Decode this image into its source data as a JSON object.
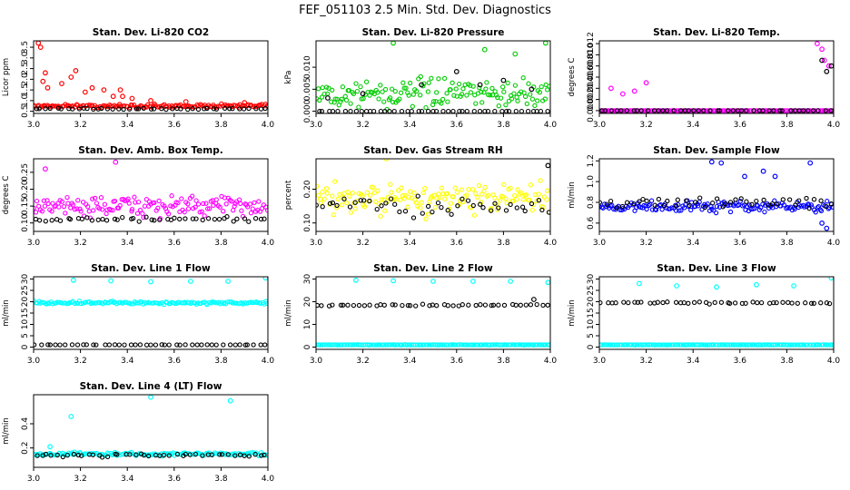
{
  "title": "FEF_051103  2.5 Min. Std. Dev. Diagnostics",
  "colors": {
    "red": "#ff0000",
    "green": "#00cc00",
    "magenta": "#ff00ff",
    "yellow": "#ffff00",
    "blue": "#0000ff",
    "cyan": "#00ffff",
    "black": "#000000"
  },
  "chart_data": [
    {
      "type": "scatter",
      "title": "Stan. Dev. Li-820 CO2",
      "ylabel": "Licor ppm",
      "xlim": [
        3.0,
        4.0
      ],
      "xticks": [
        "3.0",
        "3.2",
        "3.4",
        "3.6",
        "3.8",
        "4.0"
      ],
      "ylim": [
        0.4,
        3.8
      ],
      "yticks": [
        "0.5",
        "1.0",
        "1.5",
        "2.0",
        "2.5",
        "3.0",
        "3.5"
      ],
      "series": [
        {
          "name": "primary",
          "color": "red",
          "base": 0.75,
          "spread": 0.12,
          "outliers": [
            [
              3.02,
              3.7
            ],
            [
              3.03,
              3.5
            ],
            [
              3.05,
              2.3
            ],
            [
              3.04,
              1.9
            ],
            [
              3.06,
              1.6
            ],
            [
              3.16,
              2.1
            ],
            [
              3.18,
              2.4
            ],
            [
              3.12,
              1.8
            ],
            [
              3.22,
              1.4
            ],
            [
              3.25,
              1.6
            ],
            [
              3.3,
              1.5
            ],
            [
              3.34,
              1.2
            ],
            [
              3.37,
              1.5
            ],
            [
              3.38,
              1.2
            ],
            [
              3.42,
              1.1
            ],
            [
              3.5,
              1.0
            ],
            [
              3.65,
              0.95
            ],
            [
              3.9,
              0.9
            ]
          ]
        },
        {
          "name": "secondary",
          "color": "black",
          "base": 0.62,
          "spread": 0.05,
          "outliers": []
        }
      ]
    },
    {
      "type": "scatter",
      "title": "Stan. Dev. Li-820 Pressure",
      "ylabel": "kPa",
      "xlim": [
        3.0,
        4.0
      ],
      "xticks": [
        "3.0",
        "3.2",
        "3.4",
        "3.6",
        "3.8",
        "4.0"
      ],
      "ylim": [
        -0.0005,
        0.016
      ],
      "yticks": [
        "0.000",
        "0.005",
        "0.010"
      ],
      "series": [
        {
          "name": "primary",
          "color": "green",
          "base": 0.004,
          "spread": 0.0045,
          "outliers": [
            [
              3.33,
              0.0155
            ],
            [
              3.98,
              0.0155
            ],
            [
              3.72,
              0.014
            ],
            [
              3.85,
              0.013
            ]
          ]
        },
        {
          "name": "secondary",
          "color": "black",
          "base": 0.0,
          "spread": 0.0,
          "outliers": [
            [
              3.05,
              0.003
            ],
            [
              3.2,
              0.004
            ],
            [
              3.45,
              0.006
            ],
            [
              3.6,
              0.009
            ],
            [
              3.7,
              0.006
            ],
            [
              3.8,
              0.007
            ],
            [
              3.92,
              0.005
            ]
          ]
        }
      ]
    },
    {
      "type": "scatter",
      "title": "Stan. Dev. Li-820 Temp.",
      "ylabel": "degrees C",
      "xlim": [
        3.0,
        4.0
      ],
      "xticks": [
        "3.0",
        "3.2",
        "3.4",
        "3.6",
        "3.8",
        "4.0"
      ],
      "ylim": [
        -0.0005,
        0.0125
      ],
      "yticks": [
        "0.000",
        "0.002",
        "0.004",
        "0.006",
        "0.008",
        "0.010",
        "0.012"
      ],
      "series": [
        {
          "name": "primary",
          "color": "magenta",
          "base": 0.0,
          "spread": 0.0,
          "outliers": [
            [
              3.05,
              0.004
            ],
            [
              3.1,
              0.003
            ],
            [
              3.15,
              0.0035
            ],
            [
              3.2,
              0.005
            ],
            [
              3.93,
              0.012
            ],
            [
              3.95,
              0.011
            ],
            [
              3.96,
              0.009
            ],
            [
              3.98,
              0.008
            ]
          ]
        },
        {
          "name": "secondary",
          "color": "black",
          "base": 0.0,
          "spread": 0.0,
          "outliers": [
            [
              3.95,
              0.009
            ],
            [
              3.97,
              0.007
            ],
            [
              3.99,
              0.008
            ]
          ]
        }
      ]
    },
    {
      "type": "scatter",
      "title": "Stan. Dev. Amb. Box Temp.",
      "ylabel": "degrees C",
      "xlim": [
        3.0,
        4.0
      ],
      "xticks": [
        "3.0",
        "3.2",
        "3.4",
        "3.6",
        "3.8",
        "4.0"
      ],
      "ylim": [
        0.075,
        0.29
      ],
      "yticks": [
        "0.10",
        "0.15",
        "0.20",
        "0.25"
      ],
      "series": [
        {
          "name": "primary",
          "color": "magenta",
          "base": 0.15,
          "spread": 0.045,
          "outliers": [
            [
              3.35,
              0.28
            ],
            [
              3.05,
              0.26
            ]
          ]
        },
        {
          "name": "secondary",
          "color": "black",
          "base": 0.11,
          "spread": 0.01,
          "outliers": []
        }
      ]
    },
    {
      "type": "scatter",
      "title": "Stan. Dev. Gas Stream RH",
      "ylabel": "percent",
      "xlim": [
        3.0,
        4.0
      ],
      "xticks": [
        "3.0",
        "3.2",
        "3.4",
        "3.6",
        "3.8",
        "4.0"
      ],
      "ylim": [
        0.075,
        0.29
      ],
      "yticks": [
        "0.10",
        "0.20"
      ],
      "series": [
        {
          "name": "primary",
          "color": "yellow",
          "base": 0.17,
          "spread": 0.07,
          "outliers": [
            [
              3.3,
              0.29
            ]
          ]
        },
        {
          "name": "secondary",
          "color": "black",
          "base": 0.15,
          "spread": 0.04,
          "outliers": [
            [
              3.99,
              0.27
            ]
          ]
        }
      ]
    },
    {
      "type": "scatter",
      "title": "Stan. Dev. Sample Flow",
      "ylabel": "ml/min",
      "xlim": [
        3.0,
        4.0
      ],
      "xticks": [
        "3.0",
        "3.2",
        "3.4",
        "3.6",
        "3.8",
        "4.0"
      ],
      "ylim": [
        0.52,
        1.22
      ],
      "yticks": [
        "0.6",
        "0.8",
        "1.0",
        "1.2"
      ],
      "series": [
        {
          "name": "primary",
          "color": "blue",
          "base": 0.76,
          "spread": 0.08,
          "outliers": [
            [
              3.48,
              1.19
            ],
            [
              3.52,
              1.18
            ],
            [
              3.7,
              1.1
            ],
            [
              3.75,
              1.05
            ],
            [
              3.62,
              1.05
            ],
            [
              3.9,
              1.18
            ],
            [
              3.97,
              0.55
            ],
            [
              3.95,
              0.6
            ]
          ]
        },
        {
          "name": "secondary",
          "color": "black",
          "base": 0.8,
          "spread": 0.07,
          "outliers": []
        }
      ]
    },
    {
      "type": "scatter",
      "title": "Stan. Dev. Line 1 Flow",
      "ylabel": "ml/min",
      "xlim": [
        3.0,
        4.0
      ],
      "xticks": [
        "3.0",
        "3.2",
        "3.4",
        "3.6",
        "3.8",
        "4.0"
      ],
      "ylim": [
        -1,
        31
      ],
      "yticks": [
        "0",
        "5",
        "10",
        "15",
        "20",
        "25",
        "30"
      ],
      "series": [
        {
          "name": "primary",
          "color": "cyan",
          "base": 19.5,
          "spread": 0.9,
          "outliers": [
            [
              3.17,
              29.5
            ],
            [
              3.33,
              29.2
            ],
            [
              3.5,
              28.8
            ],
            [
              3.67,
              29.0
            ],
            [
              3.83,
              29.0
            ],
            [
              3.99,
              30.5
            ]
          ]
        },
        {
          "name": "secondary",
          "color": "black",
          "base": 1.0,
          "spread": 0.1,
          "outliers": []
        }
      ]
    },
    {
      "type": "scatter",
      "title": "Stan. Dev. Line 2 Flow",
      "ylabel": "ml/min",
      "xlim": [
        3.0,
        4.0
      ],
      "xticks": [
        "3.0",
        "3.2",
        "3.4",
        "3.6",
        "3.8",
        "4.0"
      ],
      "ylim": [
        -1,
        31
      ],
      "yticks": [
        "0",
        "10",
        "20",
        "30"
      ],
      "series": [
        {
          "name": "primary",
          "color": "cyan",
          "base": 1.0,
          "spread": 0.1,
          "outliers": [
            [
              3.17,
              29.5
            ],
            [
              3.33,
              29.2
            ],
            [
              3.5,
              29.0
            ],
            [
              3.67,
              29.0
            ],
            [
              3.83,
              29.0
            ],
            [
              3.99,
              28.5
            ]
          ]
        },
        {
          "name": "secondary",
          "color": "black",
          "base": 18.5,
          "spread": 0.5,
          "outliers": [
            [
              3.93,
              21.0
            ]
          ]
        }
      ]
    },
    {
      "type": "scatter",
      "title": "Stan. Dev. Line 3 Flow",
      "ylabel": "ml/min",
      "xlim": [
        3.0,
        4.0
      ],
      "xticks": [
        "3.0",
        "3.2",
        "3.4",
        "3.6",
        "3.8",
        "4.0"
      ],
      "ylim": [
        -1,
        31
      ],
      "yticks": [
        "0",
        "5",
        "10",
        "15",
        "20",
        "25",
        "30"
      ],
      "series": [
        {
          "name": "primary",
          "color": "cyan",
          "base": 1.0,
          "spread": 0.1,
          "outliers": [
            [
              3.17,
              28.0
            ],
            [
              3.33,
              27.0
            ],
            [
              3.5,
              26.5
            ],
            [
              3.67,
              27.5
            ],
            [
              3.83,
              27.0
            ],
            [
              3.99,
              30.5
            ]
          ]
        },
        {
          "name": "secondary",
          "color": "black",
          "base": 19.5,
          "spread": 0.6,
          "outliers": []
        }
      ]
    },
    {
      "type": "scatter",
      "title": "Stan. Dev. Line 4 (LT) Flow",
      "ylabel": "ml/min",
      "xlim": [
        3.0,
        4.0
      ],
      "xticks": [
        "3.0",
        "3.2",
        "3.4",
        "3.6",
        "3.8",
        "4.0"
      ],
      "ylim": [
        0.04,
        0.64
      ],
      "yticks": [
        "0.2",
        "0.4"
      ],
      "series": [
        {
          "name": "primary",
          "color": "cyan",
          "base": 0.15,
          "spread": 0.02,
          "outliers": [
            [
              3.16,
              0.46
            ],
            [
              3.5,
              0.62
            ],
            [
              3.84,
              0.59
            ],
            [
              3.07,
              0.21
            ]
          ]
        },
        {
          "name": "secondary",
          "color": "black",
          "base": 0.14,
          "spread": 0.02,
          "outliers": []
        }
      ]
    }
  ]
}
